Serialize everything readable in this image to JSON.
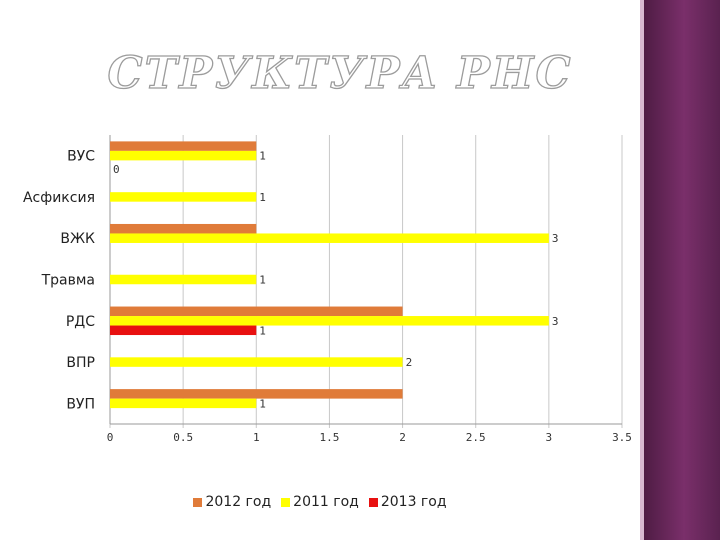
{
  "title": "СТРУКТУРА РНС",
  "chart_data": {
    "type": "bar",
    "orientation": "horizontal",
    "categories": [
      "ВУС",
      "Асфиксия",
      "ВЖК",
      "Травма",
      "РДС",
      "ВПР",
      "ВУП"
    ],
    "series": [
      {
        "name": "2012 год",
        "color": "#E07B39",
        "values": [
          1,
          null,
          1,
          null,
          2,
          null,
          2
        ]
      },
      {
        "name": "2011 год",
        "color": "#FFFF00",
        "values": [
          1,
          1,
          3,
          1,
          3,
          2,
          1
        ]
      },
      {
        "name": "2013 год",
        "color": "#E81010",
        "values": [
          0,
          null,
          null,
          null,
          1,
          null,
          null
        ]
      }
    ],
    "data_labels_series": "2011 год",
    "extra_labels": [
      {
        "category": "ВУС",
        "series": "2013 год",
        "text": "0"
      },
      {
        "category": "РДС",
        "series": "2013 год",
        "text": "1"
      }
    ],
    "xlim": [
      0,
      3.5
    ],
    "xticks": [
      "0",
      "0.5",
      "1",
      "1.5",
      "2",
      "2.5",
      "3",
      "3.5"
    ],
    "grid": "vertical",
    "legend": "bottom"
  }
}
